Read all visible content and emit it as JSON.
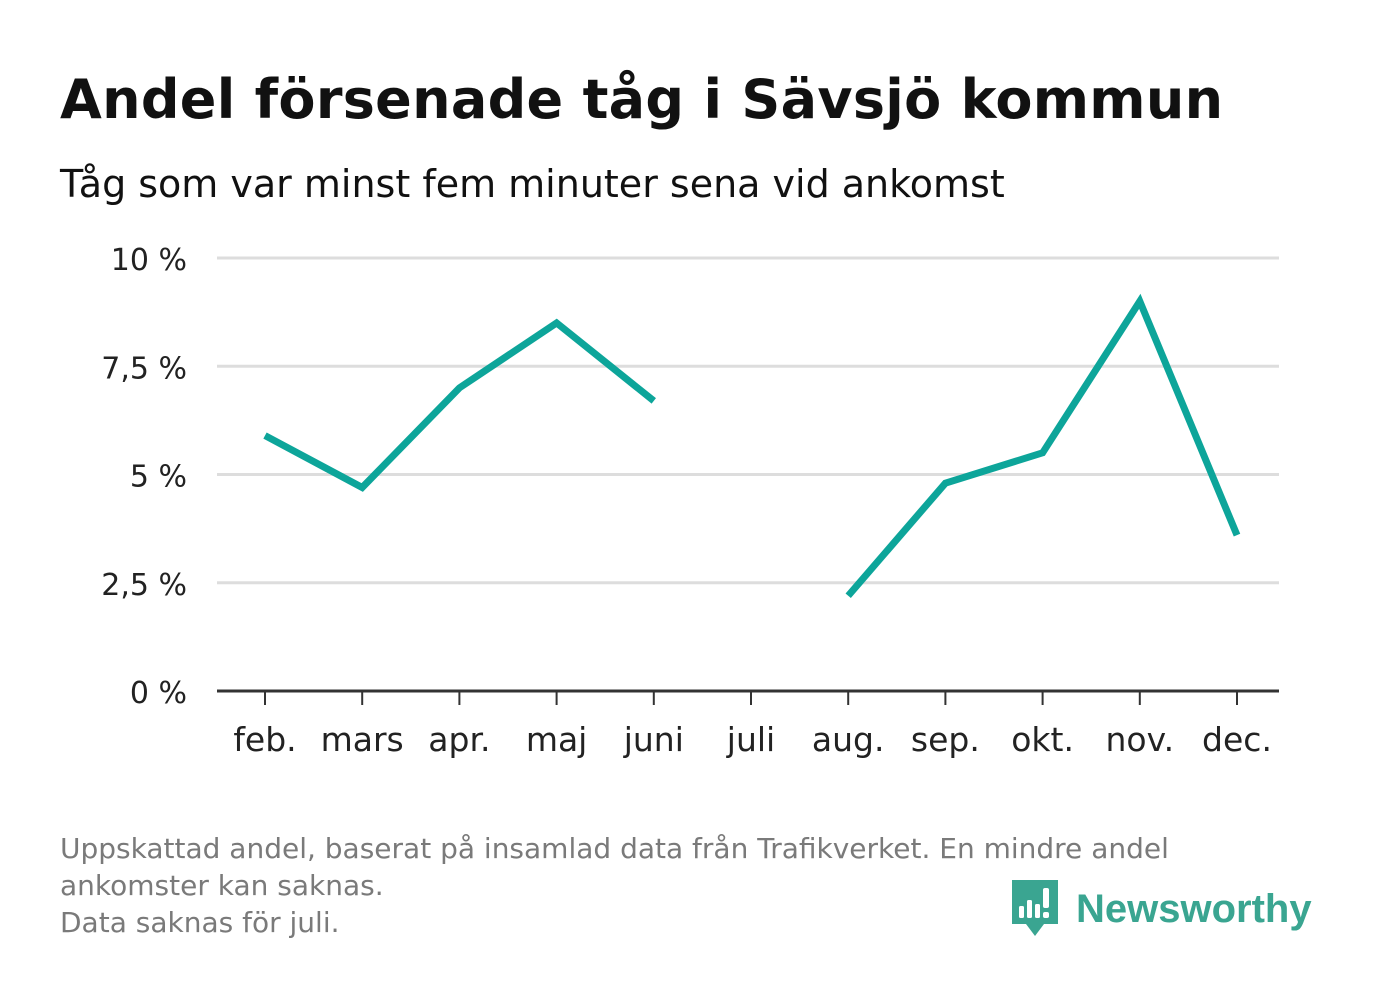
{
  "colors": {
    "series": "#0da59a",
    "grid": "#dddddd",
    "axis": "#333333",
    "brand": "#3aa591",
    "footnote": "#7a7a7a"
  },
  "header": {
    "title": "Andel försenade tåg i Sävsjö kommun",
    "subtitle": "Tåg som var minst fem minuter sena vid ankomst"
  },
  "chart_data": {
    "type": "line",
    "title": "Andel försenade tåg i Sävsjö kommun",
    "subtitle": "Tåg som var minst fem minuter sena vid ankomst",
    "categories": [
      "feb.",
      "mars",
      "apr.",
      "maj",
      "juni",
      "juli",
      "aug.",
      "sep.",
      "okt.",
      "nov.",
      "dec."
    ],
    "series": [
      {
        "values": [
          5.9,
          4.7,
          7.0,
          8.5,
          6.7,
          null,
          2.2,
          4.8,
          5.5,
          9.0,
          3.6
        ]
      }
    ],
    "ylim": [
      0,
      10
    ],
    "yticks": [
      0,
      2.5,
      5,
      7.5,
      10
    ],
    "ytick_labels": [
      "0 %",
      "2,5 %",
      "5 %",
      "7,5 %",
      "10 %"
    ],
    "grid": true,
    "legend": "none"
  },
  "footnote": {
    "lines": [
      "Uppskattad andel, baserat på insamlad data från Trafikverket. En mindre andel",
      "ankomster kan saknas.",
      "Data saknas för juli."
    ]
  },
  "brand": {
    "name": "Newsworthy",
    "icon": "newsworthy-logo-icon"
  }
}
